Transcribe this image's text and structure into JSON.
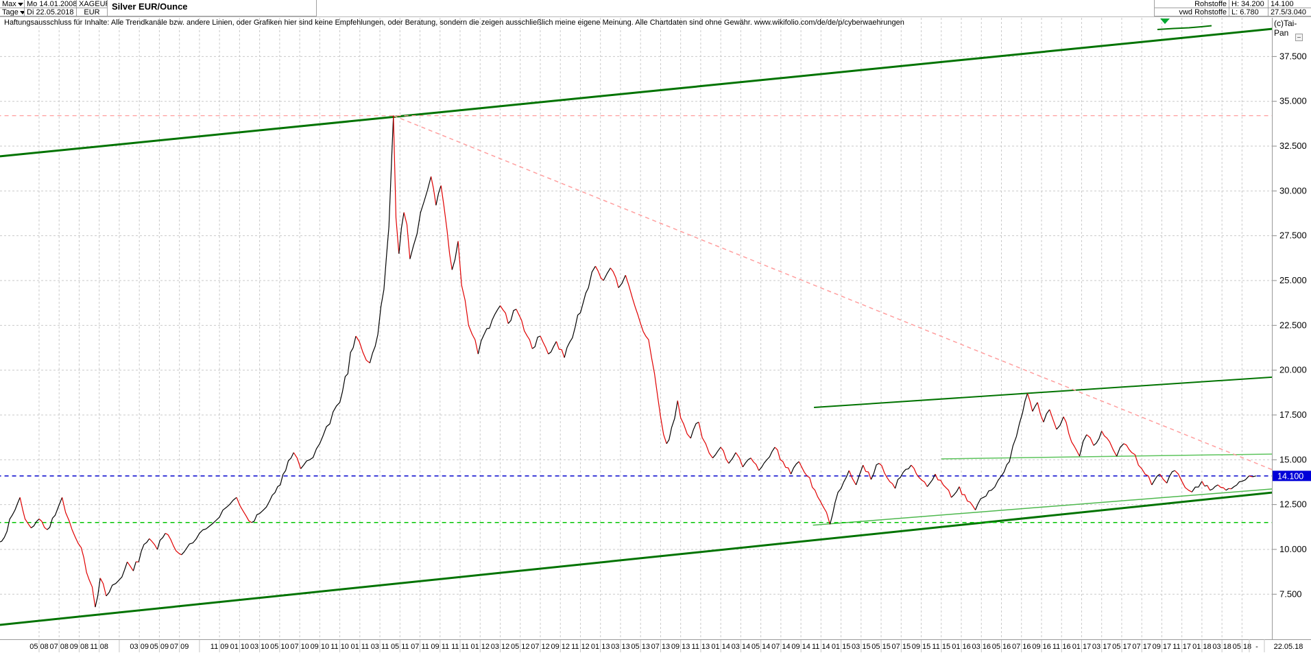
{
  "header": {
    "left": {
      "range_selector": "Max",
      "period_selector": "Tage",
      "date_start": "Mo 14.01.2008",
      "date_end": "Di 22.05.2018",
      "symbol": "XAGEUR",
      "currency": "EUR",
      "title": "Silver EUR/Ounce"
    },
    "right": {
      "group": "Rohstoffe",
      "source": "vwd Rohstoffe",
      "high": "H: 34.200",
      "low": "L: 6.780",
      "last": "14.100",
      "extra": "27.5/3.040",
      "copyright": "(c)Tai-Pan"
    }
  },
  "disclaimer": "Haftungsausschluss für Inhalte: Alle Trendkanäle bzw. andere Linien, oder Grafiken hier sind keine Empfehlungen, oder Beratung, sondern die zeigen ausschließlich meine eigene Meinung. Alle Chartdaten sind ohne Gewähr.  www.wikifolio.com/de/de/p/cyberwaehrungen",
  "axis": {
    "last_price_badge": "14.100",
    "badge_color": "#0000d8",
    "x_end_separator": "-",
    "x_end_date": "22.05.18",
    "y_labels": [
      {
        "text": "37.500",
        "value": 37.5
      },
      {
        "text": "35.000",
        "value": 35.0
      },
      {
        "text": "32.500",
        "value": 32.5
      },
      {
        "text": "30.000",
        "value": 30.0
      },
      {
        "text": "27.500",
        "value": 27.5
      },
      {
        "text": "25.000",
        "value": 25.0
      },
      {
        "text": "22.500",
        "value": 22.5
      },
      {
        "text": "20.000",
        "value": 20.0
      },
      {
        "text": "17.500",
        "value": 17.5
      },
      {
        "text": "15.000",
        "value": 15.0
      },
      {
        "text": "12.500",
        "value": 12.5
      },
      {
        "text": "10.000",
        "value": 10.0
      },
      {
        "text": "7.500",
        "value": 7.5
      }
    ],
    "x_labels": [
      {
        "month": 4,
        "text": "05 08"
      },
      {
        "month": 6,
        "text": "07 08"
      },
      {
        "month": 8,
        "text": "09 08"
      },
      {
        "month": 10,
        "text": "11 08"
      },
      {
        "month": 12,
        "text": ""
      },
      {
        "month": 14,
        "text": "03 09"
      },
      {
        "month": 16,
        "text": "05 09"
      },
      {
        "month": 18,
        "text": "07 09"
      },
      {
        "month": 20,
        "text": ""
      },
      {
        "month": 22,
        "text": "11 09"
      },
      {
        "month": 24,
        "text": "01 10"
      },
      {
        "month": 26,
        "text": "03 10"
      },
      {
        "month": 28,
        "text": "05 10"
      },
      {
        "month": 30,
        "text": "07 10"
      },
      {
        "month": 32,
        "text": "09 10"
      },
      {
        "month": 34,
        "text": "11 10"
      },
      {
        "month": 36,
        "text": "01 11"
      },
      {
        "month": 38,
        "text": "03 11"
      },
      {
        "month": 40,
        "text": "05 11"
      },
      {
        "month": 42,
        "text": "07 11"
      },
      {
        "month": 44,
        "text": "09 11"
      },
      {
        "month": 46,
        "text": "11 11"
      },
      {
        "month": 48,
        "text": "01 12"
      },
      {
        "month": 50,
        "text": "03 12"
      },
      {
        "month": 52,
        "text": "05 12"
      },
      {
        "month": 54,
        "text": "07 12"
      },
      {
        "month": 56,
        "text": "09 12"
      },
      {
        "month": 58,
        "text": "11 12"
      },
      {
        "month": 60,
        "text": "01 13"
      },
      {
        "month": 62,
        "text": "03 13"
      },
      {
        "month": 64,
        "text": "05 13"
      },
      {
        "month": 66,
        "text": "07 13"
      },
      {
        "month": 68,
        "text": "09 13"
      },
      {
        "month": 70,
        "text": "11 13"
      },
      {
        "month": 72,
        "text": "01 14"
      },
      {
        "month": 74,
        "text": "03 14"
      },
      {
        "month": 76,
        "text": "05 14"
      },
      {
        "month": 78,
        "text": "07 14"
      },
      {
        "month": 80,
        "text": "09 14"
      },
      {
        "month": 82,
        "text": "11 14"
      },
      {
        "month": 84,
        "text": "01 15"
      },
      {
        "month": 86,
        "text": "03 15"
      },
      {
        "month": 88,
        "text": "05 15"
      },
      {
        "month": 90,
        "text": "07 15"
      },
      {
        "month": 92,
        "text": "09 15"
      },
      {
        "month": 94,
        "text": "11 15"
      },
      {
        "month": 96,
        "text": "01 16"
      },
      {
        "month": 98,
        "text": "03 16"
      },
      {
        "month": 100,
        "text": "05 16"
      },
      {
        "month": 102,
        "text": "07 16"
      },
      {
        "month": 104,
        "text": "09 16"
      },
      {
        "month": 106,
        "text": "11 16"
      },
      {
        "month": 108,
        "text": "01 17"
      },
      {
        "month": 110,
        "text": "03 17"
      },
      {
        "month": 112,
        "text": "05 17"
      },
      {
        "month": 114,
        "text": "07 17"
      },
      {
        "month": 116,
        "text": "09 17"
      },
      {
        "month": 118,
        "text": "11 17"
      },
      {
        "month": 120,
        "text": "01 18"
      },
      {
        "month": 122,
        "text": "03 18"
      },
      {
        "month": 124,
        "text": "05 18"
      }
    ]
  },
  "chart_data": {
    "type": "line",
    "title": "Silver EUR/Ounce",
    "x_unit": "months since 2008-01 (daily data, 14.01.2008 - 22.05.2018)",
    "ylabel": "EUR per ounce",
    "y_ticks": [
      37.5,
      35,
      32.5,
      30,
      27.5,
      25,
      22.5,
      20,
      17.5,
      15,
      12.5,
      10,
      7.5
    ],
    "high": 34.2,
    "low": 6.78,
    "last": 14.1,
    "grid": true,
    "colors": {
      "up": "#000000",
      "down": "#e00000",
      "grid": "#c9c9c9",
      "channel": "#007300",
      "light_green": "#4db84d",
      "red_dash": "#ff9e9e",
      "blue_dash": "#0000cc",
      "green_dash": "#00c400"
    },
    "series": [
      {
        "name": "XAGEUR daily",
        "anchors": [
          [
            0,
            10.4
          ],
          [
            0.8,
            11
          ],
          [
            1.6,
            12.2
          ],
          [
            2.1,
            12.9
          ],
          [
            2.6,
            11.7
          ],
          [
            3.2,
            11.2
          ],
          [
            4,
            11.7
          ],
          [
            4.8,
            11.1
          ],
          [
            5.6,
            11.9
          ],
          [
            6.3,
            12.9
          ],
          [
            7,
            11.6
          ],
          [
            7.6,
            10.7
          ],
          [
            8.2,
            10.1
          ],
          [
            9,
            8.3
          ],
          [
            9.6,
            6.78
          ],
          [
            10.1,
            8.4
          ],
          [
            10.7,
            7.4
          ],
          [
            11.3,
            8
          ],
          [
            12,
            8.3
          ],
          [
            12.8,
            9.3
          ],
          [
            13.4,
            8.8
          ],
          [
            14.2,
            9.9
          ],
          [
            15,
            10.6
          ],
          [
            15.8,
            10
          ],
          [
            16.6,
            10.9
          ],
          [
            17.4,
            10.2
          ],
          [
            18.2,
            9.7
          ],
          [
            19,
            10.3
          ],
          [
            20,
            10.9
          ],
          [
            21,
            11.3
          ],
          [
            22,
            11.8
          ],
          [
            23,
            12.5
          ],
          [
            23.7,
            12.9
          ],
          [
            24.4,
            12.1
          ],
          [
            25.2,
            11.5
          ],
          [
            26,
            12
          ],
          [
            27,
            12.7
          ],
          [
            27.8,
            13.5
          ],
          [
            28.6,
            14.4
          ],
          [
            29.4,
            15.4
          ],
          [
            30.1,
            14.5
          ],
          [
            31,
            15
          ],
          [
            32,
            15.9
          ],
          [
            33,
            17
          ],
          [
            34,
            18.2
          ],
          [
            34.8,
            19.8
          ],
          [
            35.6,
            21.9
          ],
          [
            36.3,
            21
          ],
          [
            37,
            20.4
          ],
          [
            37.8,
            22
          ],
          [
            38.4,
            24.5
          ],
          [
            38.9,
            28
          ],
          [
            39.15,
            31.5
          ],
          [
            39.35,
            34.2
          ],
          [
            39.6,
            28.5
          ],
          [
            39.9,
            26.5
          ],
          [
            40.4,
            28.8
          ],
          [
            41,
            26.2
          ],
          [
            41.7,
            27.6
          ],
          [
            42.4,
            29.4
          ],
          [
            43.1,
            30.8
          ],
          [
            43.6,
            29.2
          ],
          [
            44.1,
            30.3
          ],
          [
            44.7,
            27.8
          ],
          [
            45.2,
            25.6
          ],
          [
            45.8,
            27.2
          ],
          [
            46.5,
            23.9
          ],
          [
            47.2,
            22
          ],
          [
            47.8,
            20.9
          ],
          [
            48.4,
            22
          ],
          [
            49.2,
            22.8
          ],
          [
            50,
            23.6
          ],
          [
            50.8,
            22.6
          ],
          [
            51.6,
            23.4
          ],
          [
            52.4,
            22.2
          ],
          [
            53.2,
            21.2
          ],
          [
            54,
            21.9
          ],
          [
            54.8,
            20.9
          ],
          [
            55.6,
            21.6
          ],
          [
            56.4,
            20.7
          ],
          [
            57.2,
            21.8
          ],
          [
            58,
            23.2
          ],
          [
            58.8,
            24.6
          ],
          [
            59.5,
            25.8
          ],
          [
            60.3,
            25
          ],
          [
            61,
            25.7
          ],
          [
            61.8,
            24.6
          ],
          [
            62.5,
            25.3
          ],
          [
            63.2,
            24
          ],
          [
            64,
            22.6
          ],
          [
            64.8,
            21.7
          ],
          [
            65.4,
            19.8
          ],
          [
            66,
            17.4
          ],
          [
            66.6,
            15.9
          ],
          [
            67.1,
            16.8
          ],
          [
            67.7,
            18.3
          ],
          [
            68.3,
            17
          ],
          [
            69,
            16.2
          ],
          [
            69.8,
            17.1
          ],
          [
            70.5,
            15.9
          ],
          [
            71.2,
            15.1
          ],
          [
            72,
            15.7
          ],
          [
            72.8,
            14.8
          ],
          [
            73.5,
            15.4
          ],
          [
            74.2,
            14.6
          ],
          [
            75,
            15.1
          ],
          [
            75.8,
            14.4
          ],
          [
            76.6,
            15
          ],
          [
            77.4,
            15.7
          ],
          [
            78.2,
            14.9
          ],
          [
            79,
            14.2
          ],
          [
            79.8,
            14.9
          ],
          [
            80.6,
            14.1
          ],
          [
            81.4,
            13.3
          ],
          [
            82.2,
            12.4
          ],
          [
            82.9,
            11.4
          ],
          [
            83.4,
            12.6
          ],
          [
            84,
            13.4
          ],
          [
            84.8,
            14.4
          ],
          [
            85.5,
            13.6
          ],
          [
            86.2,
            14.7
          ],
          [
            87,
            13.9
          ],
          [
            87.8,
            14.8
          ],
          [
            88.6,
            14
          ],
          [
            89.4,
            13.4
          ],
          [
            90.2,
            14.3
          ],
          [
            91,
            14.7
          ],
          [
            91.8,
            14
          ],
          [
            92.6,
            13.5
          ],
          [
            93.4,
            14.2
          ],
          [
            94.2,
            13.6
          ],
          [
            95,
            12.9
          ],
          [
            95.8,
            13.5
          ],
          [
            96.6,
            12.7
          ],
          [
            97.4,
            12.2
          ],
          [
            98.2,
            12.9
          ],
          [
            99,
            13.3
          ],
          [
            100,
            14.1
          ],
          [
            100.8,
            14.9
          ],
          [
            101.5,
            16.3
          ],
          [
            102.1,
            17.6
          ],
          [
            102.6,
            18.7
          ],
          [
            103.1,
            17.7
          ],
          [
            103.6,
            18.2
          ],
          [
            104.2,
            17.1
          ],
          [
            104.8,
            17.8
          ],
          [
            105.5,
            16.7
          ],
          [
            106.2,
            17.4
          ],
          [
            107,
            16
          ],
          [
            107.8,
            15.2
          ],
          [
            108.5,
            16.4
          ],
          [
            109.2,
            15.8
          ],
          [
            110,
            16.6
          ],
          [
            110.8,
            16
          ],
          [
            111.5,
            15.2
          ],
          [
            112.2,
            15.9
          ],
          [
            113,
            15.4
          ],
          [
            114,
            14.5
          ],
          [
            115,
            13.6
          ],
          [
            115.8,
            14.2
          ],
          [
            116.5,
            13.7
          ],
          [
            117.3,
            14.4
          ],
          [
            118,
            13.8
          ],
          [
            119,
            13.2
          ],
          [
            120,
            13.8
          ],
          [
            120.8,
            13.3
          ],
          [
            121.6,
            13.6
          ],
          [
            122.4,
            13.3
          ],
          [
            123.2,
            13.5
          ],
          [
            124,
            13.8
          ],
          [
            124.7,
            14.1
          ],
          [
            125.4,
            14.1
          ]
        ]
      }
    ],
    "overlays": [
      {
        "name": "upper-trend-channel",
        "style": "solid",
        "color": "#007300",
        "width": 3,
        "from": [
          0.1,
          31.93
        ],
        "to": [
          127,
          39.04
        ]
      },
      {
        "name": "lower-trend-channel",
        "style": "solid",
        "color": "#007300",
        "width": 3,
        "from": [
          0.1,
          5.79
        ],
        "to": [
          127,
          13.17
        ]
      },
      {
        "name": "inner-rising-resistance",
        "style": "solid",
        "color": "#007300",
        "width": 2,
        "from": [
          81.3,
          17.92
        ],
        "to": [
          127,
          19.61
        ]
      },
      {
        "name": "inner-rising-support",
        "style": "solid",
        "color": "#4db84d",
        "width": 1.5,
        "from": [
          81.2,
          11.35
        ],
        "to": [
          127,
          13.37
        ]
      },
      {
        "name": "resistance-15-2",
        "style": "solid",
        "color": "#5cc45c",
        "width": 1.5,
        "from": [
          94,
          15.05
        ],
        "to": [
          127,
          15.32
        ]
      },
      {
        "name": "downtrend-from-2011-high",
        "style": "dashed",
        "color": "#ff9e9e",
        "width": 1.5,
        "from": [
          39.35,
          34.2
        ],
        "to": [
          127,
          14.45
        ]
      },
      {
        "name": "high-line-34-200",
        "style": "dashed",
        "color": "#ff9e9e",
        "width": 1.2,
        "from": [
          -0.2,
          34.2
        ],
        "to": [
          127,
          34.2
        ]
      },
      {
        "name": "last-price-line-14-100",
        "style": "dashed",
        "color": "#0000cc",
        "width": 1.5,
        "from": [
          -0.2,
          14.1
        ],
        "to": [
          127,
          14.1
        ]
      },
      {
        "name": "support-11-5",
        "style": "dashed",
        "color": "#00c400",
        "width": 1.5,
        "from": [
          -0.2,
          11.5
        ],
        "to": [
          127,
          11.5
        ]
      }
    ]
  }
}
